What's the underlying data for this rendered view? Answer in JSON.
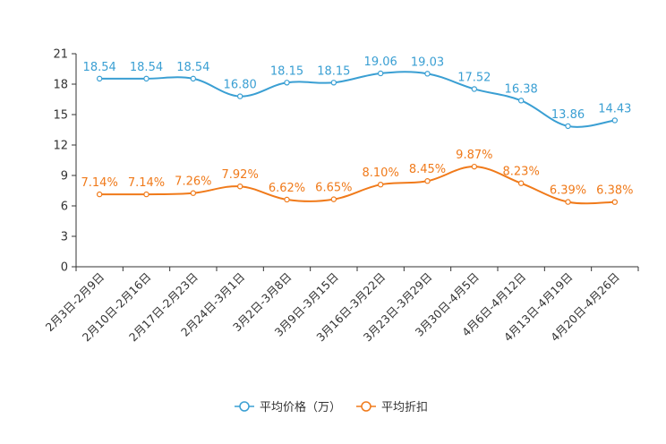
{
  "chart_data": {
    "type": "line",
    "categories": [
      "2月3日-2月9日",
      "2月10日-2月16日",
      "2月17日-2月23日",
      "2月24日-3月1日",
      "3月2日-3月8日",
      "3月9日-3月15日",
      "3月16日-3月22日",
      "3月23日-3月29日",
      "3月30日-4月5日",
      "4月6日-4月12日",
      "4月13日-4月19日",
      "4月20日-4月26日"
    ],
    "ylim": [
      0,
      21
    ],
    "yticks": [
      "0",
      "3",
      "6",
      "9",
      "12",
      "15",
      "18",
      "21"
    ],
    "series": [
      {
        "name": "平均价格（万）",
        "color": "#3a9fd3",
        "values": [
          18.54,
          18.54,
          18.54,
          16.8,
          18.15,
          18.15,
          19.06,
          19.03,
          17.52,
          16.38,
          13.86,
          14.43
        ],
        "labels": [
          "18.54",
          "18.54",
          "18.54",
          "16.80",
          "18.15",
          "18.15",
          "19.06",
          "19.03",
          "17.52",
          "16.38",
          "13.86",
          "14.43"
        ]
      },
      {
        "name": "平均折扣",
        "color": "#f07a1a",
        "values": [
          7.14,
          7.14,
          7.26,
          7.92,
          6.62,
          6.65,
          8.1,
          8.45,
          9.87,
          8.23,
          6.39,
          6.38
        ],
        "labels": [
          "7.14%",
          "7.14%",
          "7.26%",
          "7.92%",
          "6.62%",
          "6.65%",
          "8.10%",
          "8.45%",
          "9.87%",
          "8.23%",
          "6.39%",
          "6.38%"
        ]
      }
    ],
    "legend_position": "bottom"
  }
}
